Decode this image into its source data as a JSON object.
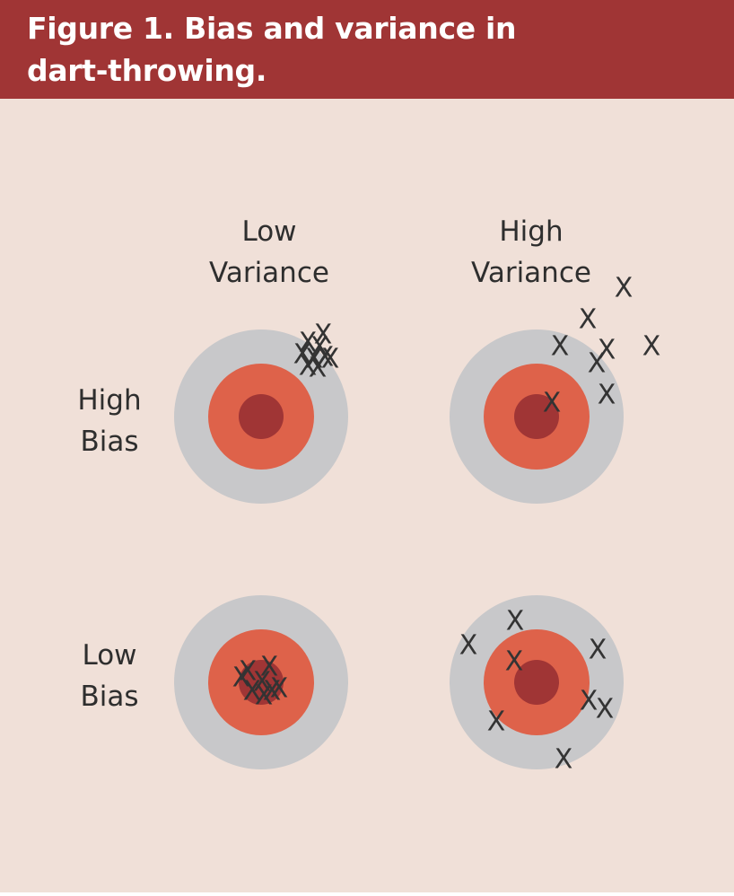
{
  "figure": {
    "title_line1": "Figure 1. Bias and variance in",
    "title_line2": "dart-throwing."
  },
  "columns": [
    {
      "line1": "Low",
      "line2": "Variance"
    },
    {
      "line1": "High",
      "line2": "Variance"
    }
  ],
  "rows": [
    {
      "line1": "High",
      "line2": "Bias"
    },
    {
      "line1": "Low",
      "line2": "Bias"
    }
  ],
  "dart_mark": "X",
  "colors": {
    "header": "#a03535",
    "background": "#f0e0d8",
    "outer_ring": "#c8c8ca",
    "middle_ring": "#de624a",
    "bullseye": "#a03535",
    "mark": "#333333"
  },
  "targets": [
    {
      "row": "High Bias",
      "column": "Low Variance",
      "dart_count": 9
    },
    {
      "row": "High Bias",
      "column": "High Variance",
      "dart_count": 9
    },
    {
      "row": "Low Bias",
      "column": "Low Variance",
      "dart_count": 8
    },
    {
      "row": "Low Bias",
      "column": "High Variance",
      "dart_count": 9
    }
  ]
}
